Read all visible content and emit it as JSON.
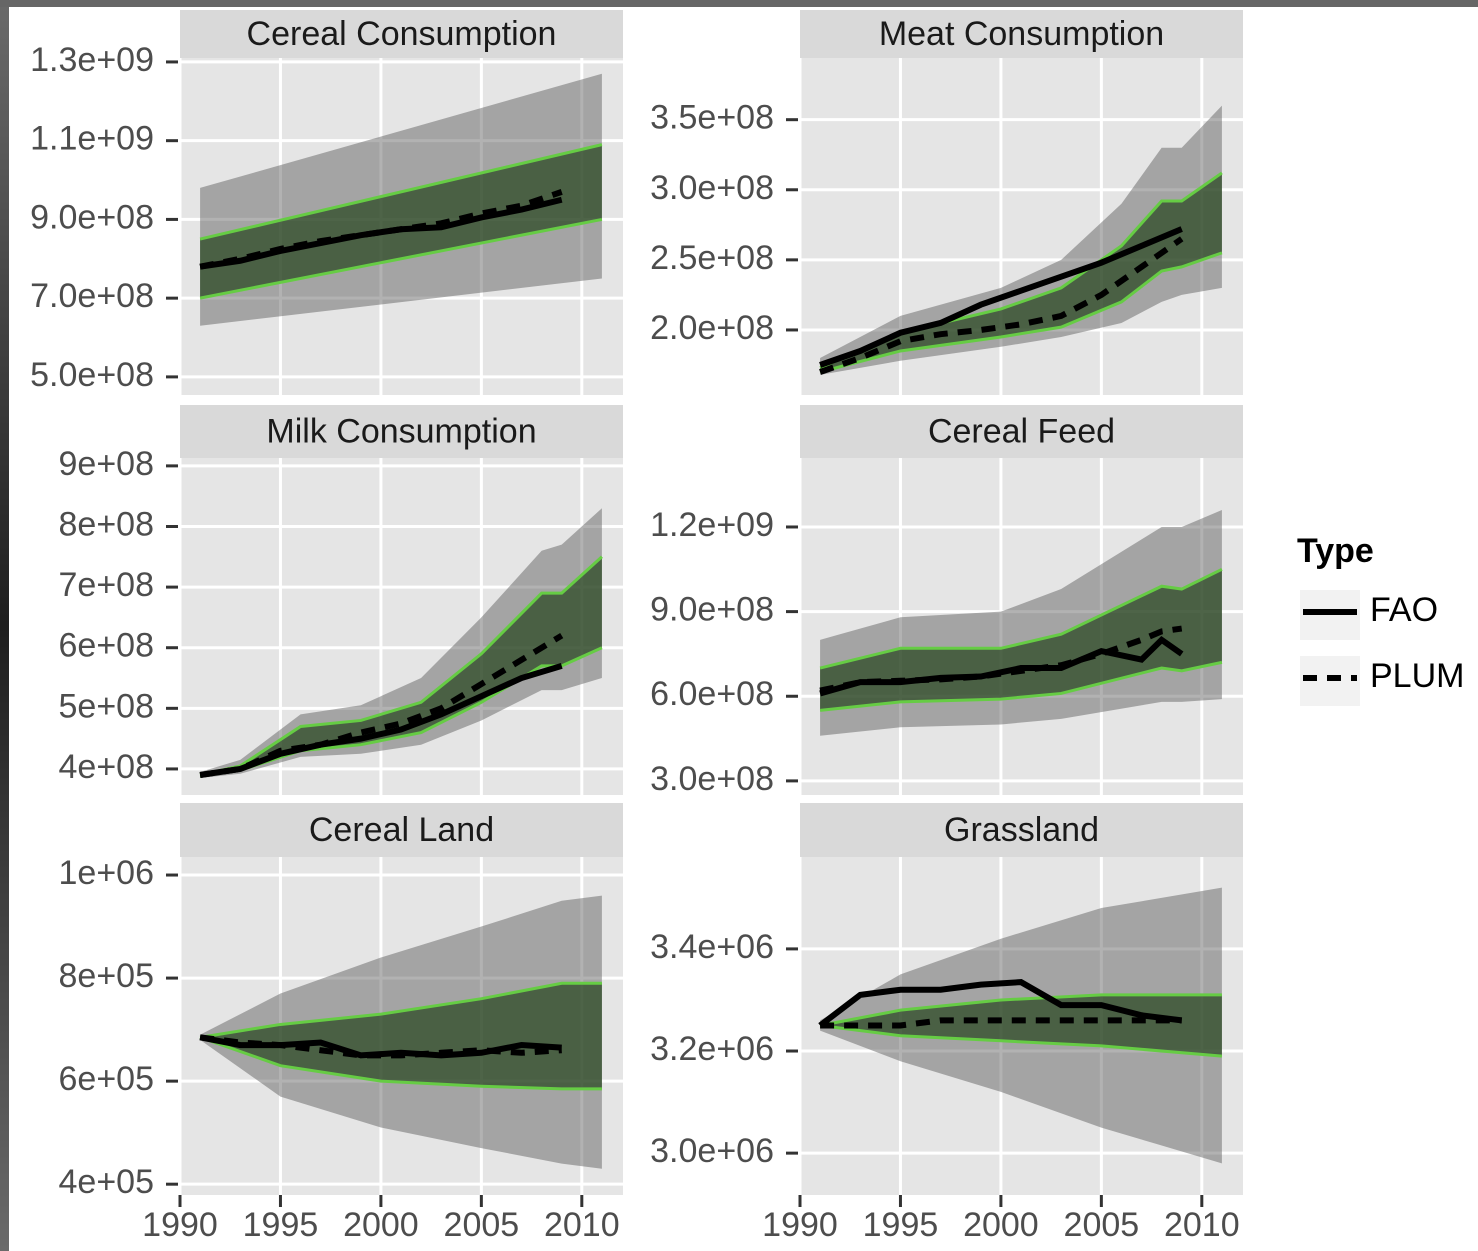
{
  "legend_title": "Type",
  "chart_data": [
    {
      "type": "line",
      "title": "Cereal Consumption",
      "x": [
        1991,
        1993,
        1995,
        1997,
        1999,
        2001,
        2003,
        2005,
        2007,
        2009
      ],
      "series": [
        {
          "name": "FAO",
          "color": "#000000",
          "dash": false,
          "values": [
            780000000,
            795000000,
            820000000,
            840000000,
            860000000,
            875000000,
            880000000,
            905000000,
            925000000,
            950000000
          ]
        },
        {
          "name": "PLUM",
          "color": "#000000",
          "dash": true,
          "values": [
            780000000,
            800000000,
            825000000,
            845000000,
            860000000,
            875000000,
            890000000,
            915000000,
            935000000,
            970000000
          ]
        }
      ],
      "interval": {
        "color": "#66cc44",
        "x": [
          1991,
          2011
        ],
        "upper": [
          850000000,
          1090000000
        ],
        "lower": [
          700000000,
          900000000
        ]
      },
      "ensemble": {
        "color": "#555555",
        "x": [
          1991,
          2011
        ],
        "upper": [
          980000000,
          1270000000
        ],
        "lower": [
          630000000,
          750000000
        ]
      },
      "xlim": [
        1990,
        2012.05
      ],
      "xticks": [
        1990,
        1995,
        2000,
        2005,
        2010
      ],
      "ylim": [
        454000000,
        1310000000
      ],
      "yticks": [
        {
          "value": 500000000,
          "label": "5.0e+08"
        },
        {
          "value": 700000000,
          "label": "7.0e+08"
        },
        {
          "value": 900000000,
          "label": "9.0e+08"
        },
        {
          "value": 1100000000,
          "label": "1.1e+09"
        },
        {
          "value": 1300000000,
          "label": "1.3e+09"
        }
      ],
      "grid": true
    },
    {
      "type": "line",
      "title": "Meat Consumption",
      "x": [
        1991,
        1993,
        1995,
        1997,
        1999,
        2001,
        2003,
        2005,
        2007,
        2009
      ],
      "series": [
        {
          "name": "FAO",
          "color": "#000000",
          "dash": false,
          "values": [
            175000000,
            185000000,
            198000000,
            205000000,
            218000000,
            228000000,
            238000000,
            248000000,
            260000000,
            272000000
          ]
        },
        {
          "name": "PLUM",
          "color": "#000000",
          "dash": true,
          "values": [
            170000000,
            180000000,
            192000000,
            197000000,
            200000000,
            204000000,
            210000000,
            225000000,
            245000000,
            265000000
          ]
        }
      ],
      "interval": {
        "color": "#66cc44",
        "x": [
          1991,
          1995,
          2000,
          2003,
          2006,
          2008,
          2009,
          2011
        ],
        "upper": [
          173000000,
          198000000,
          215000000,
          230000000,
          260000000,
          292000000,
          292000000,
          312000000
        ],
        "lower": [
          170000000,
          185000000,
          195000000,
          202000000,
          220000000,
          242000000,
          245000000,
          255000000
        ]
      },
      "ensemble": {
        "color": "#555555",
        "x": [
          1991,
          1995,
          2000,
          2003,
          2006,
          2008,
          2009,
          2011
        ],
        "upper": [
          180000000,
          210000000,
          230000000,
          250000000,
          290000000,
          330000000,
          330000000,
          360000000
        ],
        "lower": [
          168000000,
          178000000,
          188000000,
          195000000,
          205000000,
          220000000,
          225000000,
          230000000
        ]
      },
      "xlim": [
        1990,
        2012.05
      ],
      "xticks": [
        1990,
        1995,
        2000,
        2005,
        2010
      ],
      "ylim": [
        153600000,
        394000000
      ],
      "yticks": [
        {
          "value": 200000000,
          "label": "2.0e+08"
        },
        {
          "value": 250000000,
          "label": "2.5e+08"
        },
        {
          "value": 300000000,
          "label": "3.0e+08"
        },
        {
          "value": 350000000,
          "label": "3.5e+08"
        }
      ],
      "grid": true
    },
    {
      "type": "line",
      "title": "Milk Consumption",
      "x": [
        1991,
        1993,
        1995,
        1997,
        1999,
        2001,
        2003,
        2005,
        2007,
        2009
      ],
      "series": [
        {
          "name": "FAO",
          "color": "#000000",
          "dash": false,
          "values": [
            390000000,
            400000000,
            425000000,
            440000000,
            450000000,
            465000000,
            490000000,
            520000000,
            550000000,
            570000000
          ]
        },
        {
          "name": "PLUM",
          "color": "#000000",
          "dash": true,
          "values": [
            390000000,
            400000000,
            430000000,
            440000000,
            460000000,
            475000000,
            500000000,
            540000000,
            580000000,
            620000000
          ]
        }
      ],
      "interval": {
        "color": "#66cc44",
        "x": [
          1991,
          1993,
          1996,
          1999,
          2002,
          2005,
          2008,
          2009,
          2011
        ],
        "upper": [
          390000000,
          405000000,
          470000000,
          480000000,
          510000000,
          590000000,
          690000000,
          690000000,
          750000000
        ],
        "lower": [
          388000000,
          398000000,
          430000000,
          440000000,
          460000000,
          510000000,
          570000000,
          570000000,
          600000000
        ]
      },
      "ensemble": {
        "color": "#555555",
        "x": [
          1991,
          1993,
          1996,
          1999,
          2002,
          2005,
          2008,
          2009,
          2011
        ],
        "upper": [
          395000000,
          415000000,
          490000000,
          505000000,
          550000000,
          650000000,
          760000000,
          770000000,
          830000000
        ],
        "lower": [
          385000000,
          392000000,
          420000000,
          425000000,
          440000000,
          480000000,
          530000000,
          530000000,
          550000000
        ]
      },
      "xlim": [
        1990,
        2012.05
      ],
      "xticks": [
        1990,
        1995,
        2000,
        2005,
        2010
      ],
      "ylim": [
        357000000,
        913000000
      ],
      "yticks": [
        {
          "value": 400000000,
          "label": "4e+08"
        },
        {
          "value": 500000000,
          "label": "5e+08"
        },
        {
          "value": 600000000,
          "label": "6e+08"
        },
        {
          "value": 700000000,
          "label": "7e+08"
        },
        {
          "value": 800000000,
          "label": "8e+08"
        },
        {
          "value": 900000000,
          "label": "9e+08"
        }
      ],
      "grid": true
    },
    {
      "type": "line",
      "title": "Cereal Feed",
      "x": [
        1991,
        1993,
        1995,
        1997,
        1999,
        2001,
        2003,
        2005,
        2007,
        2008,
        2009
      ],
      "series": [
        {
          "name": "FAO",
          "color": "#000000",
          "dash": false,
          "values": [
            610000000,
            650000000,
            650000000,
            665000000,
            670000000,
            700000000,
            700000000,
            760000000,
            730000000,
            800000000,
            750000000
          ]
        },
        {
          "name": "PLUM",
          "color": "#000000",
          "dash": true,
          "values": [
            620000000,
            650000000,
            655000000,
            660000000,
            670000000,
            690000000,
            710000000,
            750000000,
            800000000,
            830000000,
            840000000
          ]
        }
      ],
      "interval": {
        "color": "#66cc44",
        "x": [
          1991,
          1995,
          2000,
          2003,
          2008,
          2009,
          2011
        ],
        "upper": [
          700000000,
          770000000,
          770000000,
          820000000,
          990000000,
          980000000,
          1050000000
        ],
        "lower": [
          550000000,
          580000000,
          590000000,
          610000000,
          700000000,
          690000000,
          720000000
        ]
      },
      "ensemble": {
        "color": "#555555",
        "x": [
          1991,
          1995,
          2000,
          2003,
          2008,
          2009,
          2011
        ],
        "upper": [
          800000000,
          880000000,
          900000000,
          980000000,
          1200000000,
          1200000000,
          1260000000
        ],
        "lower": [
          460000000,
          490000000,
          500000000,
          520000000,
          580000000,
          580000000,
          590000000
        ]
      },
      "xlim": [
        1990,
        2012.05
      ],
      "xticks": [
        1990,
        1995,
        2000,
        2005,
        2010
      ],
      "ylim": [
        250000000,
        1444500000
      ],
      "yticks": [
        {
          "value": 300000000,
          "label": "3.0e+08"
        },
        {
          "value": 600000000,
          "label": "6.0e+08"
        },
        {
          "value": 900000000,
          "label": "9.0e+08"
        },
        {
          "value": 1200000000,
          "label": "1.2e+09"
        }
      ],
      "grid": true
    },
    {
      "type": "line",
      "title": "Cereal Land",
      "x": [
        1991,
        1993,
        1995,
        1997,
        1999,
        2001,
        2003,
        2005,
        2007,
        2009
      ],
      "series": [
        {
          "name": "FAO",
          "color": "#000000",
          "dash": false,
          "values": [
            685000,
            670000,
            670000,
            675000,
            650000,
            655000,
            650000,
            655000,
            670000,
            665000
          ]
        },
        {
          "name": "PLUM",
          "color": "#000000",
          "dash": true,
          "values": [
            685000,
            675000,
            670000,
            660000,
            650000,
            650000,
            655000,
            660000,
            655000,
            660000
          ]
        }
      ],
      "interval": {
        "color": "#66cc44",
        "x": [
          1991,
          1995,
          2000,
          2005,
          2009,
          2011
        ],
        "upper": [
          685000,
          710000,
          730000,
          760000,
          790000,
          790000
        ],
        "lower": [
          685000,
          630000,
          600000,
          590000,
          585000,
          585000
        ]
      },
      "ensemble": {
        "color": "#555555",
        "x": [
          1991,
          1995,
          2000,
          2005,
          2009,
          2011
        ],
        "upper": [
          690000,
          770000,
          840000,
          900000,
          950000,
          960000
        ],
        "lower": [
          680000,
          570000,
          510000,
          470000,
          440000,
          430000
        ]
      },
      "xlim": [
        1990,
        2012.05
      ],
      "xticks": [
        1990,
        1995,
        2000,
        2005,
        2010
      ],
      "ylim": [
        379000,
        1035000
      ],
      "yticks": [
        {
          "value": 400000,
          "label": "4e+05"
        },
        {
          "value": 600000,
          "label": "6e+05"
        },
        {
          "value": 800000,
          "label": "8e+05"
        },
        {
          "value": 1000000,
          "label": "1e+06"
        }
      ],
      "grid": true
    },
    {
      "type": "line",
      "title": "Grassland",
      "x": [
        1991,
        1993,
        1995,
        1997,
        1999,
        2001,
        2003,
        2005,
        2007,
        2009
      ],
      "series": [
        {
          "name": "FAO",
          "color": "#000000",
          "dash": false,
          "values": [
            3250000,
            3310000,
            3320000,
            3320000,
            3330000,
            3335000,
            3290000,
            3290000,
            3270000,
            3260000
          ]
        },
        {
          "name": "PLUM",
          "color": "#000000",
          "dash": true,
          "values": [
            3250000,
            3250000,
            3250000,
            3260000,
            3260000,
            3260000,
            3260000,
            3260000,
            3260000,
            3260000
          ]
        }
      ],
      "interval": {
        "color": "#66cc44",
        "x": [
          1991,
          1995,
          2000,
          2005,
          2011
        ],
        "upper": [
          3250000,
          3280000,
          3300000,
          3310000,
          3310000
        ],
        "lower": [
          3250000,
          3230000,
          3220000,
          3210000,
          3190000
        ]
      },
      "ensemble": {
        "color": "#555555",
        "x": [
          1991,
          1995,
          2000,
          2005,
          2011
        ],
        "upper": [
          3260000,
          3350000,
          3420000,
          3480000,
          3520000
        ],
        "lower": [
          3240000,
          3180000,
          3120000,
          3050000,
          2980000
        ]
      },
      "xlim": [
        1990,
        2012.05
      ],
      "xticks": [
        1990,
        1995,
        2000,
        2005,
        2010
      ],
      "ylim": [
        2918000,
        3580000
      ],
      "yticks": [
        {
          "value": 3000000,
          "label": "3.0e+06"
        },
        {
          "value": 3200000,
          "label": "3.2e+06"
        },
        {
          "value": 3400000,
          "label": "3.4e+06"
        }
      ],
      "grid": true
    }
  ]
}
